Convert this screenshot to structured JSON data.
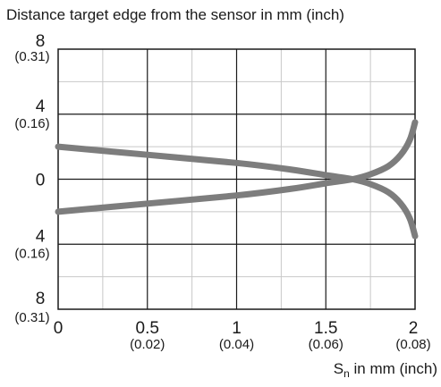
{
  "chart_data": {
    "type": "line",
    "title": "Distance target edge from the sensor in mm (inch)",
    "xlabel": {
      "symbol": "S",
      "subscript": "n",
      "text": " in mm (inch)"
    },
    "xlim": [
      0,
      2
    ],
    "ylim": [
      -8,
      8
    ],
    "grid": true,
    "x_ticks": [
      {
        "value": 0,
        "label": "0",
        "sublabel": ""
      },
      {
        "value": 0.5,
        "label": "0.5",
        "sublabel": "(0.02)"
      },
      {
        "value": 1,
        "label": "1",
        "sublabel": "(0.04)"
      },
      {
        "value": 1.5,
        "label": "1.5",
        "sublabel": "(0.06)"
      },
      {
        "value": 2,
        "label": "2",
        "sublabel": "(0.08)"
      }
    ],
    "y_ticks": [
      {
        "value": 8,
        "label": "8",
        "sublabel": "(0.31)"
      },
      {
        "value": 4,
        "label": "4",
        "sublabel": "(0.16)"
      },
      {
        "value": 0,
        "label": "0",
        "sublabel": ""
      },
      {
        "value": -4,
        "label": "4",
        "sublabel": "(0.16)"
      },
      {
        "value": -8,
        "label": "8",
        "sublabel": "(0.31)"
      }
    ],
    "series": [
      {
        "color": "#7d7d7d",
        "points": [
          [
            0,
            2.0
          ],
          [
            0.5,
            1.5
          ],
          [
            1.0,
            1.0
          ],
          [
            1.3,
            0.6
          ],
          [
            1.5,
            0.25
          ],
          [
            1.65,
            0.0
          ],
          [
            1.75,
            -0.3
          ],
          [
            1.85,
            -0.8
          ],
          [
            1.92,
            -1.5
          ],
          [
            1.97,
            -2.4
          ],
          [
            2.0,
            -3.5
          ]
        ]
      },
      {
        "color": "#7d7d7d",
        "points": [
          [
            0,
            -2.0
          ],
          [
            0.5,
            -1.5
          ],
          [
            1.0,
            -1.0
          ],
          [
            1.3,
            -0.6
          ],
          [
            1.5,
            -0.25
          ],
          [
            1.65,
            0.0
          ],
          [
            1.75,
            0.3
          ],
          [
            1.85,
            0.8
          ],
          [
            1.92,
            1.5
          ],
          [
            1.97,
            2.4
          ],
          [
            2.0,
            3.5
          ]
        ]
      }
    ]
  }
}
